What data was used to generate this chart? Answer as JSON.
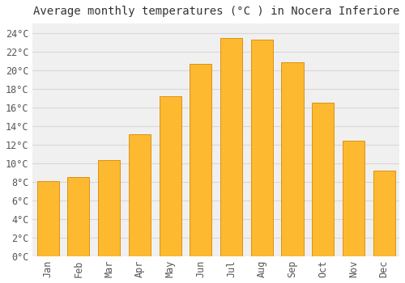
{
  "title": "Average monthly temperatures (°C ) in Nocera Inferiore",
  "months": [
    "Jan",
    "Feb",
    "Mar",
    "Apr",
    "May",
    "Jun",
    "Jul",
    "Aug",
    "Sep",
    "Oct",
    "Nov",
    "Dec"
  ],
  "temperatures": [
    8.1,
    8.5,
    10.3,
    13.1,
    17.2,
    20.7,
    23.4,
    23.3,
    20.8,
    16.5,
    12.4,
    9.2
  ],
  "bar_color": "#FDB930",
  "bar_edge_color": "#E09010",
  "background_color": "#ffffff",
  "plot_bg_color": "#f0f0f0",
  "grid_color": "#d8d8d8",
  "ylim": [
    0,
    25
  ],
  "ytick_step": 2,
  "title_fontsize": 10,
  "tick_fontsize": 8.5,
  "bar_width": 0.72
}
